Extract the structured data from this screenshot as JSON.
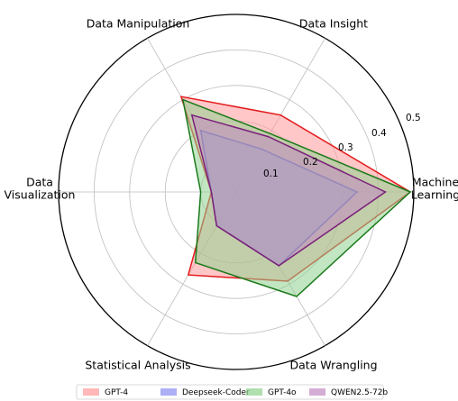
{
  "chart_data": {
    "type": "radar",
    "axes": [
      "Machine Learning",
      "Data Insight",
      "Data Manipulation",
      "Data Visualization",
      "Statistical Analysis",
      "Data Wrangling"
    ],
    "axis_label_lines": [
      [
        "Machine",
        "Learning"
      ],
      [
        "Data Insight"
      ],
      [
        "Data Manipulation"
      ],
      [
        "Data",
        "Visualization"
      ],
      [
        "Statistical Analysis"
      ],
      [
        "Data Wrangling"
      ]
    ],
    "rlim": [
      0,
      0.5
    ],
    "rticks": [
      0.1,
      0.2,
      0.3,
      0.4,
      0.5
    ],
    "rtick_labels": [
      "0.1",
      "0.2",
      "0.3",
      "0.4",
      "0.5"
    ],
    "grid": true,
    "legend_position": "bottom",
    "series": [
      {
        "name": "GPT-4",
        "values": [
          0.49,
          0.25,
          0.31,
          0.07,
          0.27,
          0.29
        ],
        "color": "#e31a1c",
        "fill": "#ff9999"
      },
      {
        "name": "Deepseek-Coder",
        "values": [
          0.34,
          0.14,
          0.2,
          0.07,
          0.11,
          0.24
        ],
        "color": "#1f1fd6",
        "fill": "#8a8ff0"
      },
      {
        "name": "GPT-4o",
        "values": [
          0.49,
          0.19,
          0.3,
          0.1,
          0.23,
          0.34
        ],
        "color": "#1a7a1a",
        "fill": "#8fd18f"
      },
      {
        "name": "QWEN2.5-72b",
        "values": [
          0.42,
          0.18,
          0.25,
          0.07,
          0.11,
          0.24
        ],
        "color": "#7a1f7a",
        "fill": "#c28ac2"
      }
    ]
  }
}
